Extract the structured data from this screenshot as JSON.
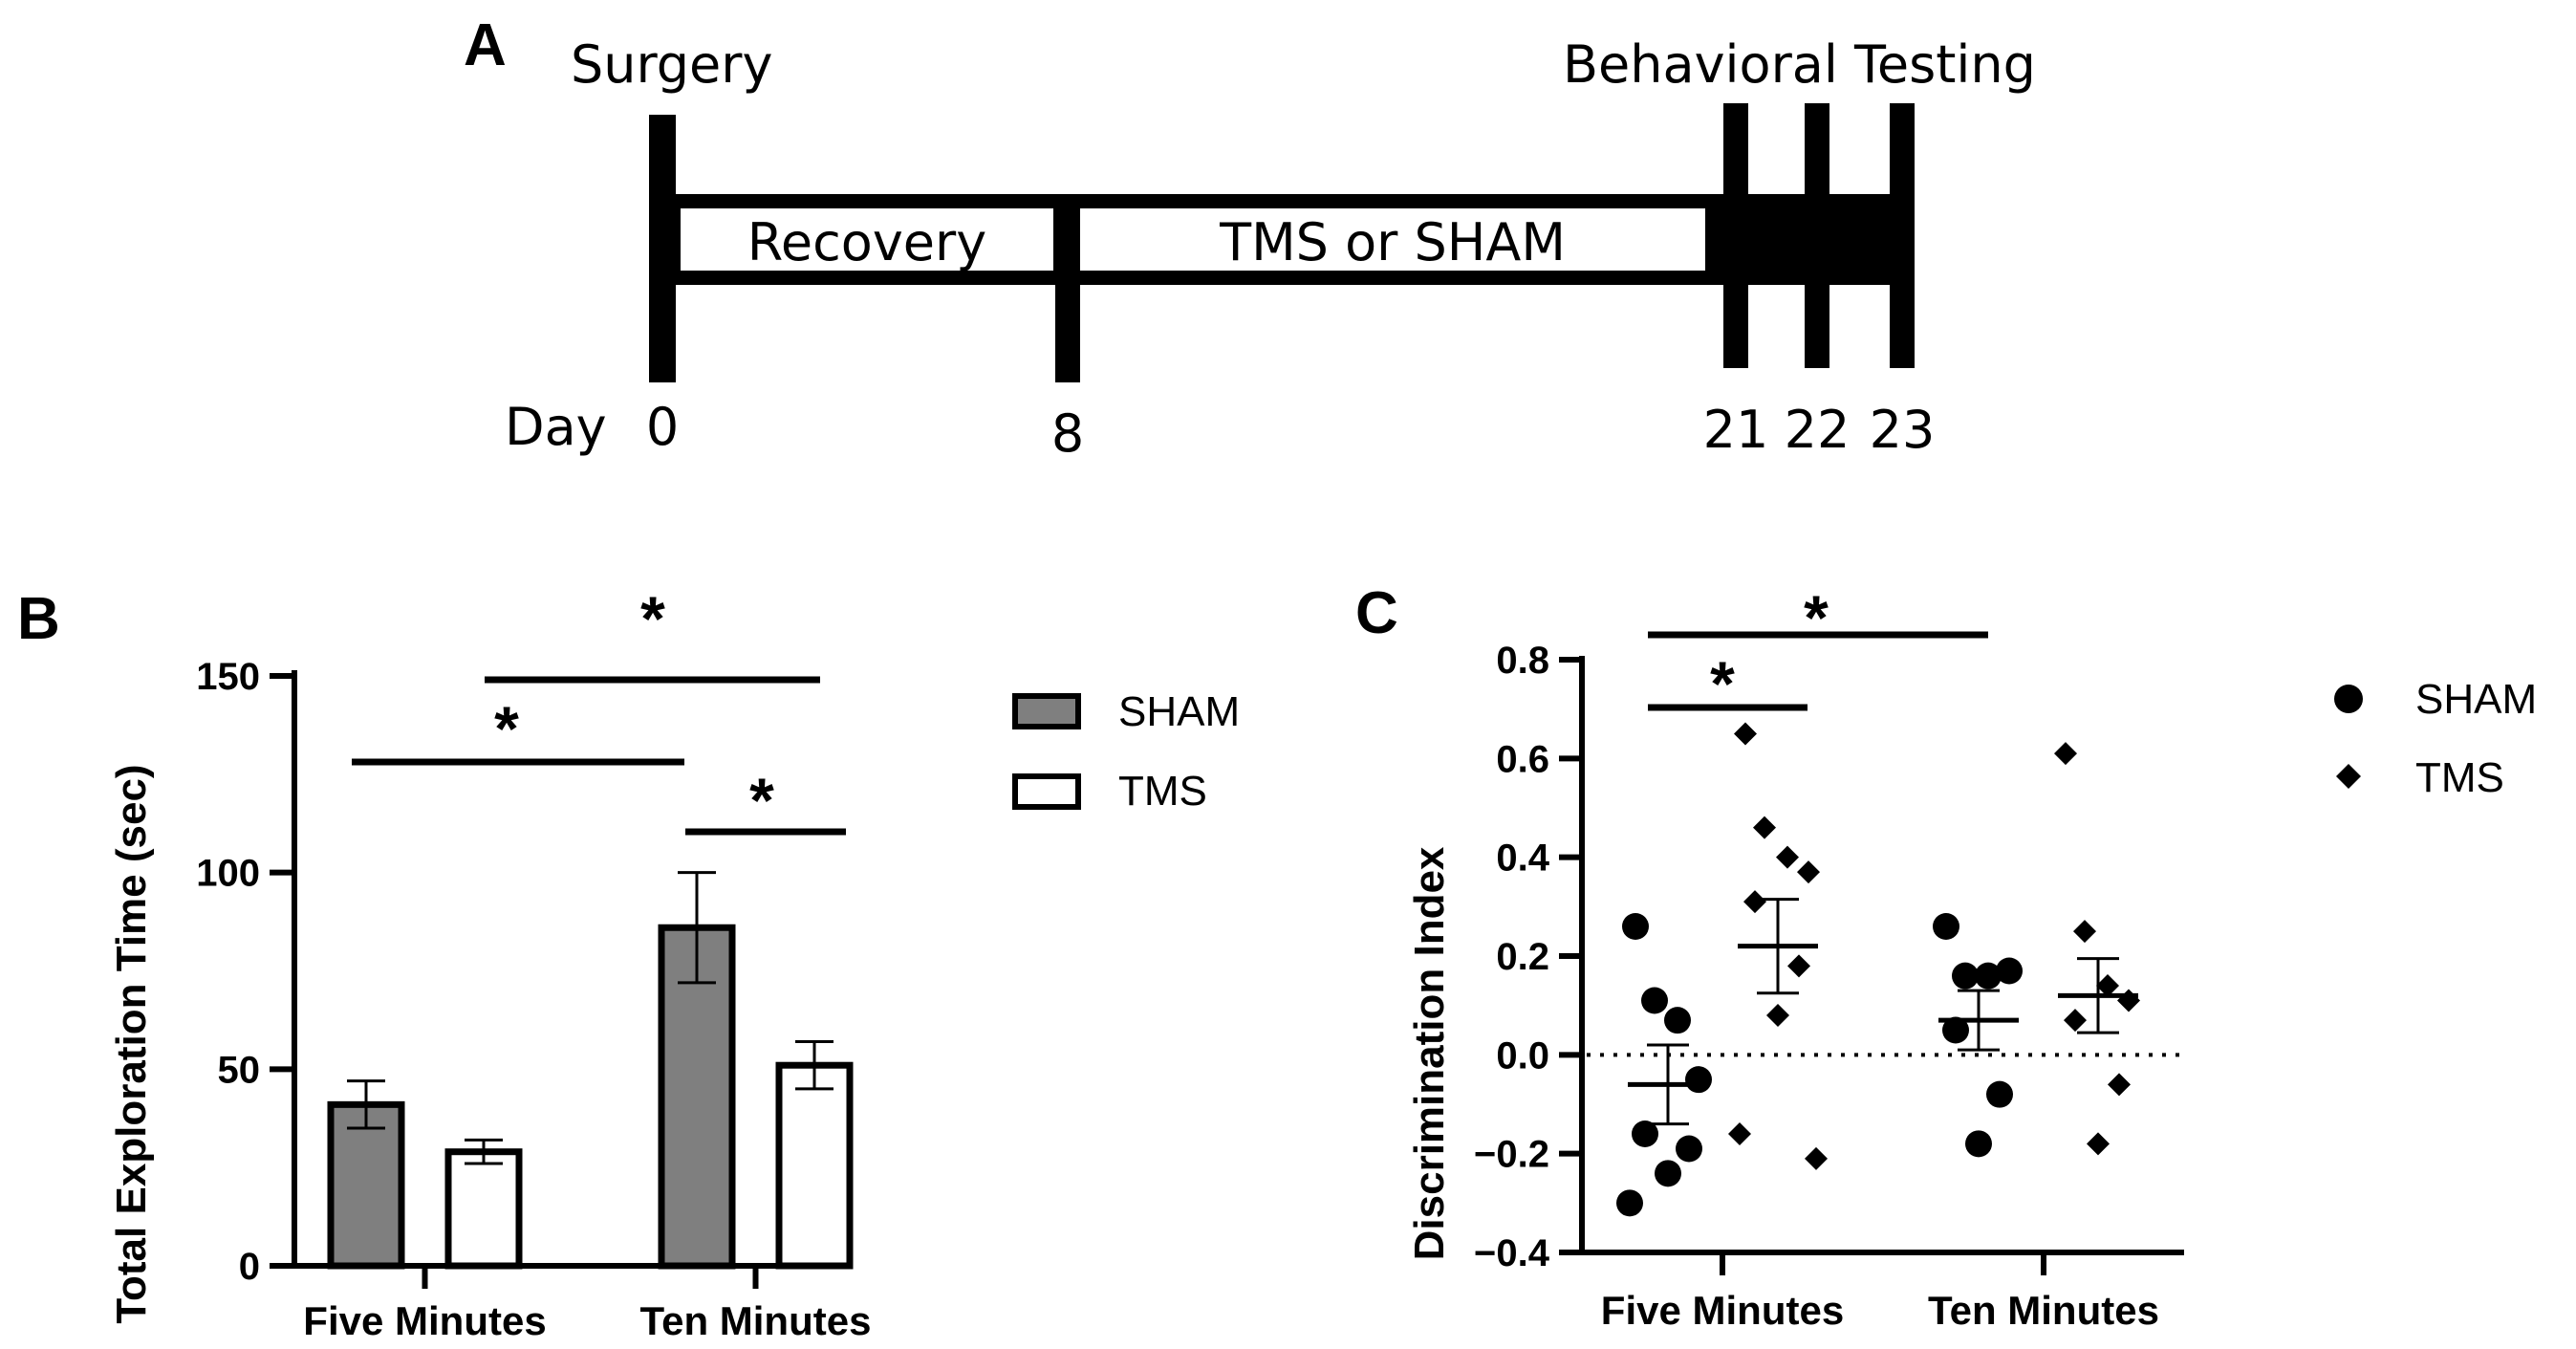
{
  "panels": {
    "a": "A",
    "b": "B",
    "c": "C"
  },
  "timeline": {
    "label_surgery": "Surgery",
    "label_testing": "Behavioral Testing",
    "phase_recovery": "Recovery",
    "phase_treatment": "TMS or SHAM",
    "day_label": "Day",
    "days": [
      "0",
      "8",
      "21",
      "22",
      "23"
    ]
  },
  "chart_data": [
    {
      "type": "bar",
      "panel": "B",
      "title": "",
      "xlabel": "",
      "ylabel": "Total Exploration Time (sec)",
      "ylim": [
        0,
        150
      ],
      "yticks": [
        "0",
        "50",
        "100",
        "150"
      ],
      "categories": [
        "Five Minutes",
        "Ten Minutes"
      ],
      "series": [
        {
          "name": "SHAM",
          "values": [
            41,
            86
          ],
          "errors": [
            6,
            14
          ],
          "color": "#7f7f7f"
        },
        {
          "name": "TMS",
          "values": [
            29,
            51
          ],
          "errors": [
            3,
            6
          ],
          "color": "#ffffff"
        }
      ],
      "legend": {
        "position": "right",
        "entries": [
          "SHAM",
          "TMS"
        ]
      },
      "significance": [
        {
          "between": "Five Minutes SHAM vs Ten Minutes SHAM",
          "label": "*"
        },
        {
          "between": "Five Minutes TMS vs Ten Minutes TMS",
          "label": "*"
        },
        {
          "between": "Ten Minutes SHAM vs Ten Minutes TMS",
          "label": "*"
        }
      ]
    },
    {
      "type": "scatter",
      "panel": "C",
      "title": "",
      "xlabel": "",
      "ylabel": "Discrimination  Index",
      "ylim": [
        -0.4,
        0.8
      ],
      "yticks": [
        "−0.4",
        "−0.2",
        "0.0",
        "0.2",
        "0.4",
        "0.6",
        "0.8"
      ],
      "categories": [
        "Five Minutes",
        "Ten Minutes"
      ],
      "reference_line": 0,
      "series": [
        {
          "name": "SHAM",
          "marker": "circle",
          "points": [
            {
              "group": "Five Minutes",
              "values": [
                0.26,
                0.11,
                0.07,
                -0.05,
                -0.16,
                -0.19,
                -0.24,
                -0.3
              ],
              "mean": -0.06,
              "sem": 0.08
            },
            {
              "group": "Ten Minutes",
              "values": [
                0.26,
                0.16,
                0.16,
                0.17,
                0.05,
                -0.08,
                -0.18
              ],
              "mean": 0.07,
              "sem": 0.06
            }
          ]
        },
        {
          "name": "TMS",
          "marker": "diamond",
          "points": [
            {
              "group": "Five Minutes",
              "values": [
                0.65,
                0.46,
                0.4,
                0.37,
                0.31,
                0.18,
                0.08,
                -0.16,
                -0.21
              ],
              "mean": 0.22,
              "sem": 0.095
            },
            {
              "group": "Ten Minutes",
              "values": [
                0.61,
                0.25,
                0.14,
                0.11,
                0.07,
                -0.06,
                -0.18
              ],
              "mean": 0.12,
              "sem": 0.075
            }
          ]
        }
      ],
      "legend": {
        "position": "right",
        "entries": [
          "SHAM",
          "TMS"
        ]
      },
      "significance": [
        {
          "between": "Five Minutes SHAM vs Five Minutes TMS",
          "label": "*"
        },
        {
          "between": "Five Minutes SHAM vs Ten Minutes SHAM",
          "label": "*"
        }
      ]
    }
  ]
}
